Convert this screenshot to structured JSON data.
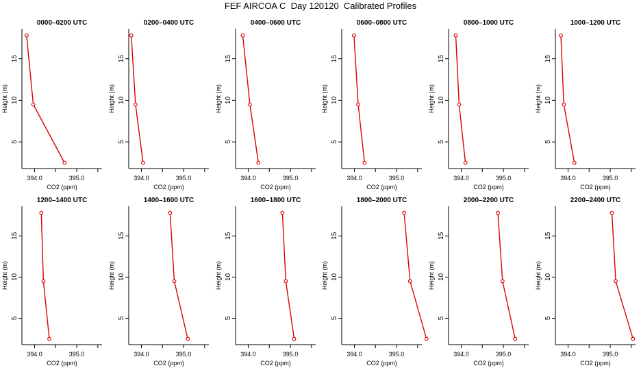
{
  "title": "FEF AIRCOA C  Day 120120  Calibrated Profiles",
  "style": {
    "line_color": "#dd0000",
    "axis_color": "#000000"
  },
  "axes": {
    "xlabel": "CO2 (ppm)",
    "ylabel": "Height (m)",
    "x_ticks": [
      "394.0",
      "395.0"
    ],
    "y_ticks": [
      "5",
      "10",
      "15"
    ]
  },
  "chart_data": [
    {
      "type": "line",
      "title": "0000–0200 UTC",
      "xlabel": "CO2 (ppm)",
      "ylabel": "Height (m)",
      "xlim": [
        393.7,
        395.6
      ],
      "ylim": [
        1.8,
        18.6
      ],
      "series": [
        {
          "x": [
            393.81,
            393.97,
            394.71
          ],
          "y": [
            17.8,
            9.5,
            2.5
          ]
        }
      ]
    },
    {
      "type": "line",
      "title": "0200–0400 UTC",
      "xlabel": "CO2 (ppm)",
      "ylabel": "Height (m)",
      "xlim": [
        393.7,
        395.6
      ],
      "ylim": [
        1.8,
        18.6
      ],
      "series": [
        {
          "x": [
            393.76,
            393.86,
            394.04
          ],
          "y": [
            17.8,
            9.5,
            2.5
          ]
        }
      ]
    },
    {
      "type": "line",
      "title": "0400–0600 UTC",
      "xlabel": "CO2 (ppm)",
      "ylabel": "Height (m)",
      "xlim": [
        393.7,
        395.6
      ],
      "ylim": [
        1.8,
        18.6
      ],
      "series": [
        {
          "x": [
            393.87,
            394.04,
            394.24
          ],
          "y": [
            17.8,
            9.5,
            2.5
          ]
        }
      ]
    },
    {
      "type": "line",
      "title": "0600–0800 UTC",
      "xlabel": "CO2 (ppm)",
      "ylabel": "Height (m)",
      "xlim": [
        393.7,
        395.6
      ],
      "ylim": [
        1.8,
        18.6
      ],
      "series": [
        {
          "x": [
            393.99,
            394.09,
            394.24
          ],
          "y": [
            17.8,
            9.5,
            2.5
          ]
        }
      ]
    },
    {
      "type": "line",
      "title": "0800–1000 UTC",
      "xlabel": "CO2 (ppm)",
      "ylabel": "Height (m)",
      "xlim": [
        393.7,
        395.6
      ],
      "ylim": [
        1.8,
        18.6
      ],
      "series": [
        {
          "x": [
            393.87,
            393.95,
            394.1
          ],
          "y": [
            17.8,
            9.5,
            2.5
          ]
        }
      ]
    },
    {
      "type": "line",
      "title": "1000–1200 UTC",
      "xlabel": "CO2 (ppm)",
      "ylabel": "Height (m)",
      "xlim": [
        393.7,
        395.6
      ],
      "ylim": [
        1.8,
        18.6
      ],
      "series": [
        {
          "x": [
            393.83,
            393.9,
            394.15
          ],
          "y": [
            17.8,
            9.5,
            2.5
          ]
        }
      ]
    },
    {
      "type": "line",
      "title": "1200–1400 UTC",
      "xlabel": "CO2 (ppm)",
      "ylabel": "Height (m)",
      "xlim": [
        393.7,
        395.6
      ],
      "ylim": [
        1.8,
        18.6
      ],
      "series": [
        {
          "x": [
            394.16,
            394.21,
            394.35
          ],
          "y": [
            17.8,
            9.5,
            2.5
          ]
        }
      ]
    },
    {
      "type": "line",
      "title": "1400–1600 UTC",
      "xlabel": "CO2 (ppm)",
      "ylabel": "Height (m)",
      "xlim": [
        393.7,
        395.6
      ],
      "ylim": [
        1.8,
        18.6
      ],
      "series": [
        {
          "x": [
            394.68,
            394.78,
            395.1
          ],
          "y": [
            17.8,
            9.5,
            2.5
          ]
        }
      ]
    },
    {
      "type": "line",
      "title": "1600–1800 UTC",
      "xlabel": "CO2 (ppm)",
      "ylabel": "Height (m)",
      "xlim": [
        393.7,
        395.6
      ],
      "ylim": [
        1.8,
        18.6
      ],
      "series": [
        {
          "x": [
            394.81,
            394.89,
            395.09
          ],
          "y": [
            17.8,
            9.5,
            2.5
          ]
        }
      ]
    },
    {
      "type": "line",
      "title": "1800–2000 UTC",
      "xlabel": "CO2 (ppm)",
      "ylabel": "Height (m)",
      "xlim": [
        393.7,
        395.6
      ],
      "ylim": [
        1.8,
        18.6
      ],
      "series": [
        {
          "x": [
            395.18,
            395.32,
            395.71
          ],
          "y": [
            17.8,
            9.5,
            2.5
          ]
        }
      ]
    },
    {
      "type": "line",
      "title": "2000–2200 UTC",
      "xlabel": "CO2 (ppm)",
      "ylabel": "Height (m)",
      "xlim": [
        393.7,
        395.6
      ],
      "ylim": [
        1.8,
        18.6
      ],
      "series": [
        {
          "x": [
            394.87,
            394.98,
            395.28
          ],
          "y": [
            17.8,
            9.5,
            2.5
          ]
        }
      ]
    },
    {
      "type": "line",
      "title": "2200–2400 UTC",
      "xlabel": "CO2 (ppm)",
      "ylabel": "Height (m)",
      "xlim": [
        393.7,
        395.6
      ],
      "ylim": [
        1.8,
        18.6
      ],
      "series": [
        {
          "x": [
            395.04,
            395.13,
            395.54
          ],
          "y": [
            17.8,
            9.5,
            2.5
          ]
        }
      ]
    }
  ]
}
